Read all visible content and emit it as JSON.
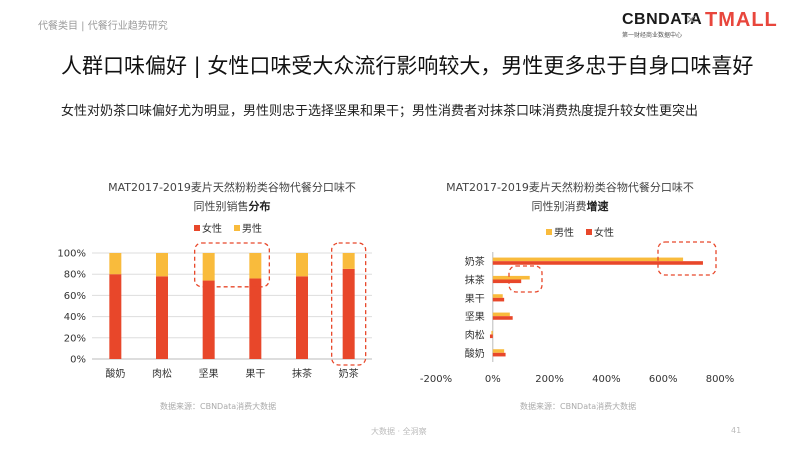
{
  "header": {
    "breadcrumb": "代餐类目 | 代餐行业趋势研究",
    "logo_cbn": "CBNDATA",
    "logo_cbn_sub": "第一财经商业数据中心",
    "logo_x": "×",
    "logo_tmall": "TMALL"
  },
  "title": "人群口味偏好 | 女性口味受大众流行影响较大，男性更多忠于自身口味喜好",
  "subtitle": "女性对奶茶口味偏好尤为明显，男性则忠于选择坚果和果干；男性消费者对抹茶口味消费热度提升较女性更突出",
  "colors": {
    "female": "#e8472a",
    "male": "#f9bb3c",
    "dash": "#e8472a",
    "grid": "#dddddd"
  },
  "chart_data": [
    {
      "type": "bar",
      "stacked": true,
      "title_line1": "MAT2017-2019麦片天然粉粉类谷物代餐分口味不",
      "title_line2_plain": "同性别销售",
      "title_line2_bold": "分布",
      "categories": [
        "酸奶",
        "肉松",
        "坚果",
        "果干",
        "抹茶",
        "奶茶"
      ],
      "series": [
        {
          "name": "女性",
          "values": [
            80,
            78,
            74,
            76,
            78,
            85
          ]
        },
        {
          "name": "男性",
          "values": [
            20,
            22,
            26,
            24,
            22,
            15
          ]
        }
      ],
      "ylim": [
        0,
        100
      ],
      "yticks": [
        "0%",
        "20%",
        "40%",
        "60%",
        "80%",
        "100%"
      ],
      "legend": "top-center",
      "highlight_boxes": [
        "坚果-果干",
        "奶茶"
      ],
      "source": "数据来源：CBNData消费大数据"
    },
    {
      "type": "bar",
      "orientation": "horizontal",
      "title_line1": "MAT2017-2019麦片天然粉粉类谷物代餐分口味不",
      "title_line2_plain": "同性别消费",
      "title_line2_bold": "增速",
      "categories": [
        "奶茶",
        "抹茶",
        "果干",
        "坚果",
        "肉松",
        "酸奶"
      ],
      "series": [
        {
          "name": "男性",
          "values": [
            670,
            130,
            35,
            60,
            -5,
            40
          ]
        },
        {
          "name": "女性",
          "values": [
            740,
            100,
            40,
            70,
            -10,
            45
          ]
        }
      ],
      "xlim": [
        -200,
        800
      ],
      "xticks": [
        "-200%",
        "0%",
        "200%",
        "400%",
        "600%",
        "800%"
      ],
      "legend": "top-center",
      "highlight_boxes": [
        "奶茶",
        "抹茶"
      ],
      "source": "数据来源：CBNData消费大数据"
    }
  ],
  "footer": {
    "text": "大数据 · 全洞察",
    "page": "41"
  }
}
